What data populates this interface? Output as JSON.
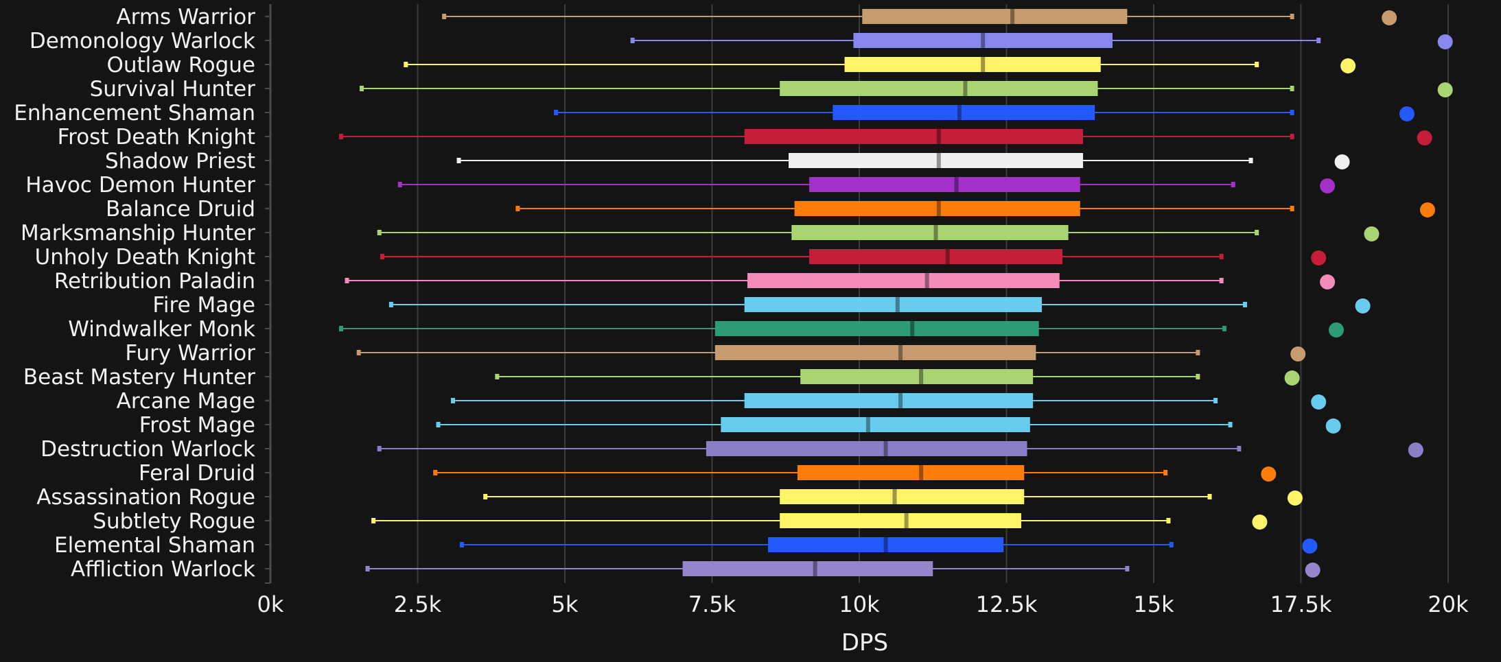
{
  "chart_data": {
    "type": "boxplot",
    "xlabel": "DPS",
    "xlim": [
      0,
      20000
    ],
    "x_ticks": [
      0,
      2500,
      5000,
      7500,
      10000,
      12500,
      15000,
      17500,
      20000
    ],
    "x_tick_labels": [
      "0k",
      "2.5k",
      "5k",
      "7.5k",
      "10k",
      "12.5k",
      "15k",
      "17.5k",
      "20k"
    ],
    "grid": true,
    "series": [
      {
        "name": "Arms Warrior",
        "color": "#C69B6D",
        "min": 2950,
        "q1": 10050,
        "median": 12600,
        "q3": 14550,
        "max": 17350,
        "outlier": 19000
      },
      {
        "name": "Demonology Warlock",
        "color": "#8788EE",
        "min": 6150,
        "q1": 9900,
        "median": 12100,
        "q3": 14300,
        "max": 17800,
        "outlier": 19950
      },
      {
        "name": "Outlaw Rogue",
        "color": "#FFF468",
        "min": 2300,
        "q1": 9750,
        "median": 12100,
        "q3": 14100,
        "max": 16750,
        "outlier": 18300
      },
      {
        "name": "Survival Hunter",
        "color": "#AAD372",
        "min": 1550,
        "q1": 8650,
        "median": 11800,
        "q3": 14050,
        "max": 17350,
        "outlier": 19950
      },
      {
        "name": "Enhancement Shaman",
        "color": "#2359FF",
        "min": 4850,
        "q1": 9550,
        "median": 11700,
        "q3": 14000,
        "max": 17350,
        "outlier": 19300
      },
      {
        "name": "Frost Death Knight",
        "color": "#C41E3A",
        "min": 1200,
        "q1": 8050,
        "median": 11350,
        "q3": 13800,
        "max": 17350,
        "outlier": 19600
      },
      {
        "name": "Shadow Priest",
        "color": "#F0F0F0",
        "min": 3200,
        "q1": 8800,
        "median": 11350,
        "q3": 13800,
        "max": 16650,
        "outlier": 18200
      },
      {
        "name": "Havoc Demon Hunter",
        "color": "#A330C9",
        "min": 2200,
        "q1": 9150,
        "median": 11650,
        "q3": 13750,
        "max": 16350,
        "outlier": 17950
      },
      {
        "name": "Balance Druid",
        "color": "#FF7C0A",
        "min": 4200,
        "q1": 8900,
        "median": 11350,
        "q3": 13750,
        "max": 17350,
        "outlier": 19650
      },
      {
        "name": "Marksmanship Hunter",
        "color": "#AAD372",
        "min": 1850,
        "q1": 8850,
        "median": 11300,
        "q3": 13550,
        "max": 16750,
        "outlier": 18700
      },
      {
        "name": "Unholy Death Knight",
        "color": "#C41E3A",
        "min": 1900,
        "q1": 9150,
        "median": 11500,
        "q3": 13450,
        "max": 16150,
        "outlier": 17800
      },
      {
        "name": "Retribution Paladin",
        "color": "#F48CBA",
        "min": 1300,
        "q1": 8100,
        "median": 11150,
        "q3": 13400,
        "max": 16150,
        "outlier": 17950
      },
      {
        "name": "Fire Mage",
        "color": "#68CCEF",
        "min": 2050,
        "q1": 8050,
        "median": 10650,
        "q3": 13100,
        "max": 16550,
        "outlier": 18550
      },
      {
        "name": "Windwalker Monk",
        "color": "#2E9B77",
        "min": 1200,
        "q1": 7550,
        "median": 10900,
        "q3": 13050,
        "max": 16200,
        "outlier": 18100
      },
      {
        "name": "Fury Warrior",
        "color": "#C69B6D",
        "min": 1500,
        "q1": 7550,
        "median": 10700,
        "q3": 13000,
        "max": 15750,
        "outlier": 17450
      },
      {
        "name": "Beast Mastery Hunter",
        "color": "#AAD372",
        "min": 3850,
        "q1": 9000,
        "median": 11050,
        "q3": 12950,
        "max": 15750,
        "outlier": 17350
      },
      {
        "name": "Arcane Mage",
        "color": "#68CCEF",
        "min": 3100,
        "q1": 8050,
        "median": 10700,
        "q3": 12950,
        "max": 16050,
        "outlier": 17800
      },
      {
        "name": "Frost Mage",
        "color": "#68CCEF",
        "min": 2850,
        "q1": 7650,
        "median": 10150,
        "q3": 12900,
        "max": 16300,
        "outlier": 18050
      },
      {
        "name": "Destruction Warlock",
        "color": "#8A7FC7",
        "min": 1850,
        "q1": 7400,
        "median": 10450,
        "q3": 12850,
        "max": 16450,
        "outlier": 19450
      },
      {
        "name": "Feral Druid",
        "color": "#FF7C0A",
        "min": 2800,
        "q1": 8950,
        "median": 11050,
        "q3": 12800,
        "max": 15200,
        "outlier": 16950
      },
      {
        "name": "Assassination Rogue",
        "color": "#FFF468",
        "min": 3650,
        "q1": 8650,
        "median": 10600,
        "q3": 12800,
        "max": 15950,
        "outlier": 17400
      },
      {
        "name": "Subtlety Rogue",
        "color": "#FFF468",
        "min": 1750,
        "q1": 8650,
        "median": 10800,
        "q3": 12750,
        "max": 15250,
        "outlier": 16800
      },
      {
        "name": "Elemental Shaman",
        "color": "#2359FF",
        "min": 3250,
        "q1": 8450,
        "median": 10450,
        "q3": 12450,
        "max": 15300,
        "outlier": 17650
      },
      {
        "name": "Affliction Warlock",
        "color": "#9585CC",
        "min": 1650,
        "q1": 7000,
        "median": 9250,
        "q3": 11250,
        "max": 14550,
        "outlier": 17700
      }
    ]
  }
}
